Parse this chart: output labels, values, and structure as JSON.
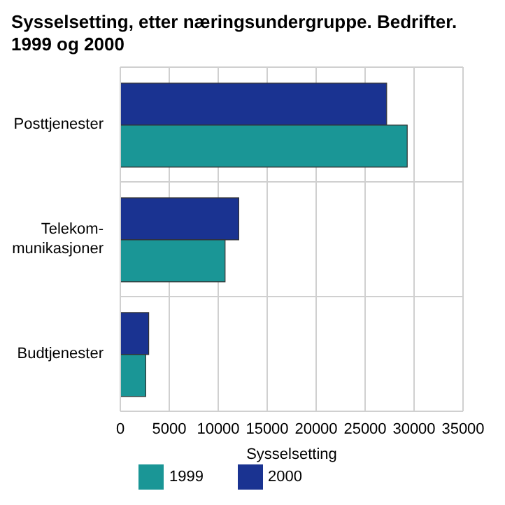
{
  "chart_data": {
    "type": "bar",
    "orientation": "horizontal",
    "title": "Sysselsetting, etter næringsundergruppe. Bedrifter. 1999 og 2000",
    "xlabel": "Sysselsetting",
    "categories": [
      "Posttjenester",
      "Telekom-munikasjoner",
      "Budtjenester"
    ],
    "series": [
      {
        "name": "1999",
        "color": "#1a9696",
        "values": [
          29300,
          10700,
          2600
        ]
      },
      {
        "name": "2000",
        "color": "#1a3391",
        "values": [
          27200,
          12100,
          2900
        ]
      }
    ],
    "xlim": [
      0,
      35000
    ],
    "xticks": [
      0,
      5000,
      10000,
      15000,
      20000,
      25000,
      30000,
      35000
    ],
    "grid": true,
    "legend": "bottom"
  }
}
